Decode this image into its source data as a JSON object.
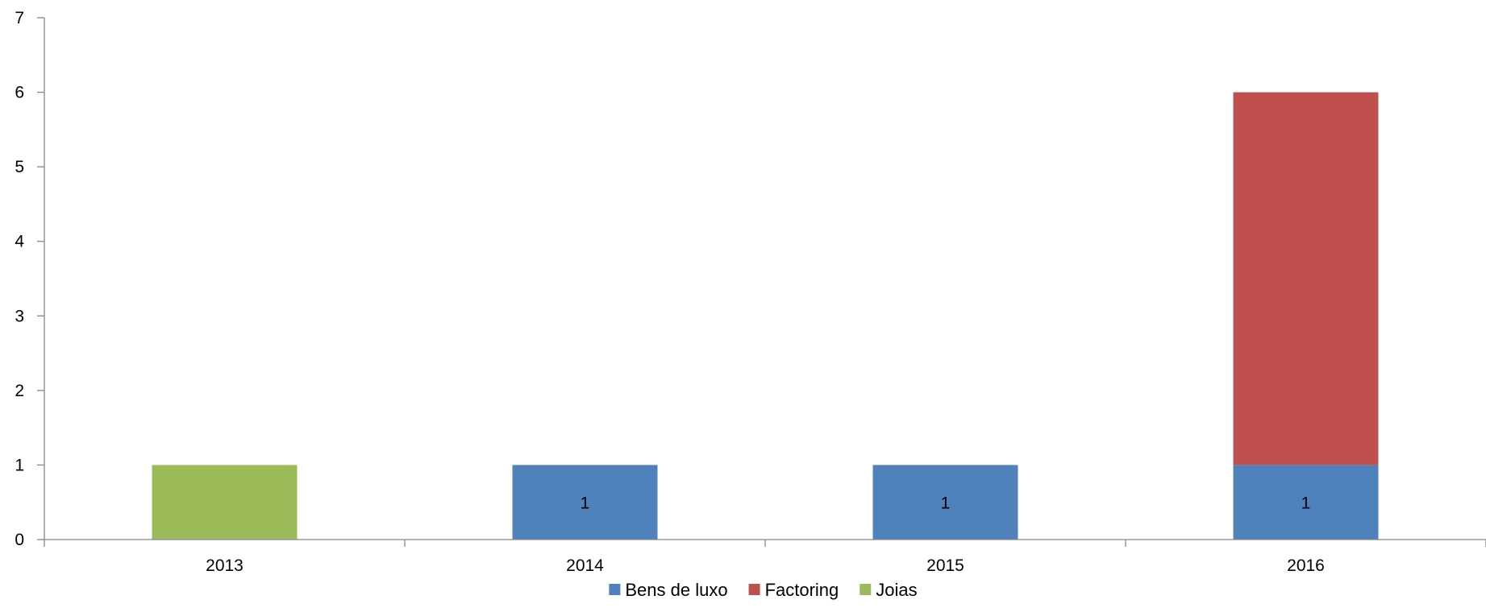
{
  "chart_data": {
    "type": "bar",
    "stacked": true,
    "categories": [
      "2013",
      "2014",
      "2015",
      "2016"
    ],
    "ylim": [
      0,
      7
    ],
    "y_ticks": [
      "0",
      "1",
      "2",
      "3",
      "4",
      "5",
      "6",
      "7"
    ],
    "grid": false,
    "legend_position": "bottom",
    "series": [
      {
        "name": "Bens de luxo",
        "color": "#4F81BD",
        "values": [
          0,
          1,
          1,
          1
        ],
        "data_labels": [
          "",
          "1",
          "1",
          "1"
        ]
      },
      {
        "name": "Factoring",
        "color": "#C0504D",
        "values": [
          0,
          0,
          0,
          5
        ],
        "data_labels": [
          "",
          "",
          "",
          ""
        ]
      },
      {
        "name": "Joias",
        "color": "#9BBB59",
        "values": [
          1,
          0,
          0,
          0
        ],
        "data_labels": [
          "",
          "",
          "",
          ""
        ]
      }
    ]
  }
}
